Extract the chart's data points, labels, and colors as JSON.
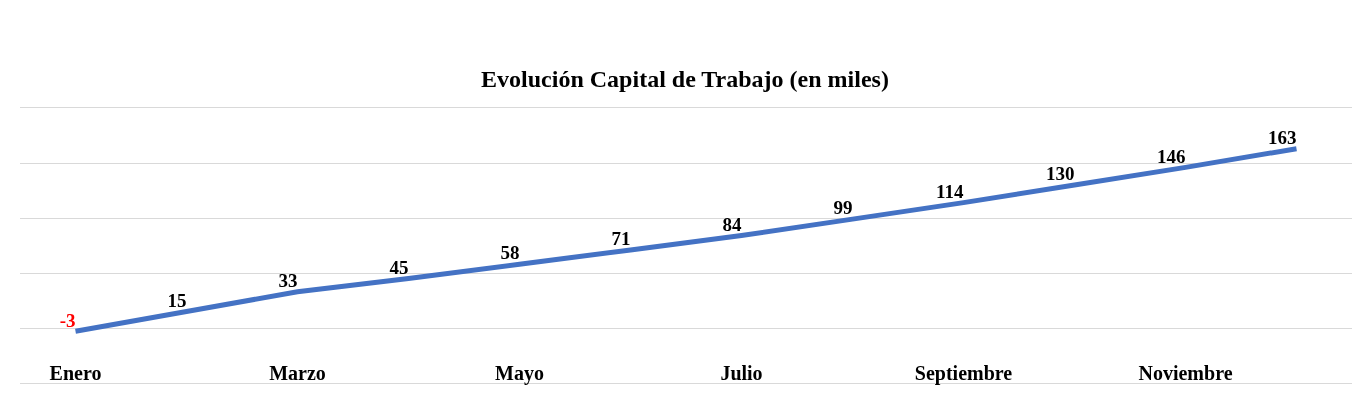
{
  "chart_data": {
    "type": "line",
    "title": "Evolución Capital de Trabajo (en miles)",
    "categories": [
      "Enero",
      null,
      "Marzo",
      null,
      "Mayo",
      null,
      "Julio",
      null,
      "Septiembre",
      null,
      "Noviembre",
      null
    ],
    "series": [
      {
        "color": "#4472c4",
        "values": [
          -3,
          15,
          33,
          45,
          58,
          71,
          84,
          99,
          114,
          130,
          146,
          163
        ]
      }
    ],
    "ylim": [
      -50,
      200
    ],
    "yticks": [
      {
        "value": -50,
        "label": null
      },
      {
        "value": 0,
        "label": null
      },
      {
        "value": 50,
        "label": null
      },
      {
        "value": 100,
        "label": null
      },
      {
        "value": 150,
        "label": null
      },
      {
        "value": 200,
        "label": null
      }
    ],
    "grid": "y",
    "marker": "none",
    "line_style": "solid",
    "data_labels": true,
    "tick_labels": "x"
  }
}
